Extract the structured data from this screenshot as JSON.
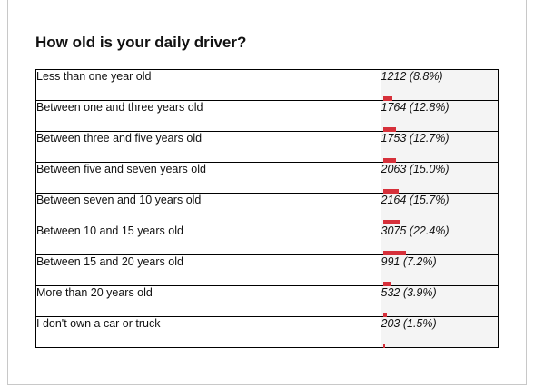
{
  "poll": {
    "title": "How old is your daily driver?",
    "accent_color": "#d6303a",
    "options": [
      {
        "label": "Less than one year old",
        "result": "1212 (8.8%)",
        "percent": 8.8
      },
      {
        "label": "Between one and three years old",
        "result": "1764 (12.8%)",
        "percent": 12.8
      },
      {
        "label": "Between three and five years old",
        "result": "1753 (12.7%)",
        "percent": 12.7
      },
      {
        "label": "Between five and seven years old",
        "result": "2063 (15.0%)",
        "percent": 15.0
      },
      {
        "label": "Between seven and 10 years old",
        "result": "2164 (15.7%)",
        "percent": 15.7
      },
      {
        "label": "Between 10 and 15 years old",
        "result": "3075 (22.4%)",
        "percent": 22.4
      },
      {
        "label": "Between 15 and 20 years old",
        "result": "991 (7.2%)",
        "percent": 7.2
      },
      {
        "label": "More than 20 years old",
        "result": "532 (3.9%)",
        "percent": 3.9
      },
      {
        "label": "I don't own a car or truck",
        "result": "203 (1.5%)",
        "percent": 1.5
      }
    ]
  }
}
